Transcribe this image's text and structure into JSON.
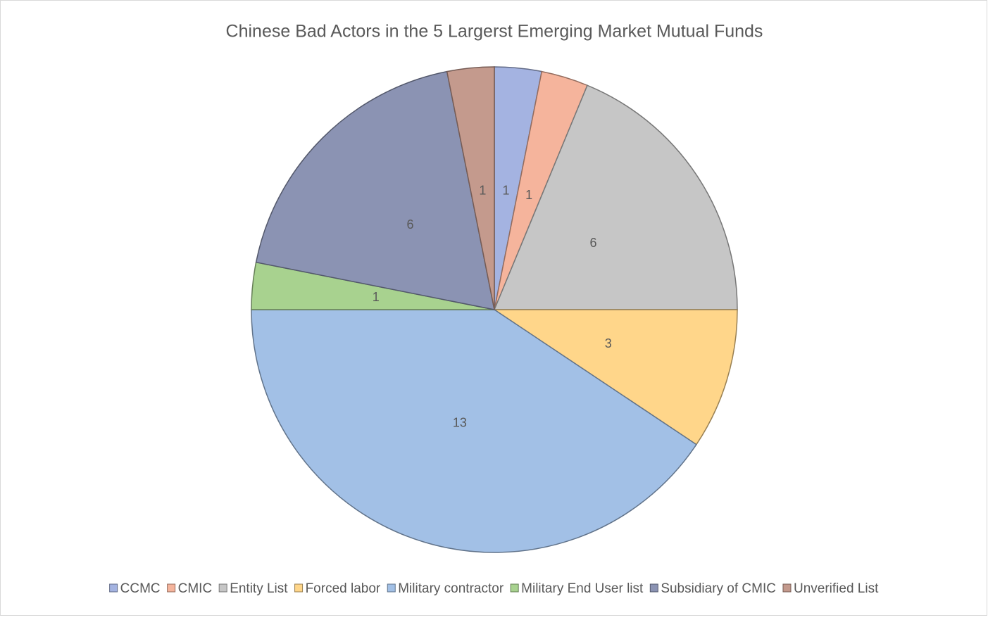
{
  "chart_data": {
    "type": "pie",
    "title": "Chinese Bad Actors in the 5 Largerst Emerging Market Mutual Funds",
    "categories": [
      "CCMC",
      "CMIC",
      "Entity List",
      "Forced labor",
      "Military contractor",
      "Military End User list",
      "Subsidiary of CMIC",
      "Unverified List"
    ],
    "values": [
      1,
      1,
      6,
      3,
      13,
      1,
      6,
      1
    ],
    "colors": [
      "#a4b3e1",
      "#f5b49c",
      "#c6c6c6",
      "#ffd68a",
      "#a2c0e6",
      "#a8d28f",
      "#8b93b3",
      "#c49a8d"
    ],
    "legend": "bottom"
  }
}
